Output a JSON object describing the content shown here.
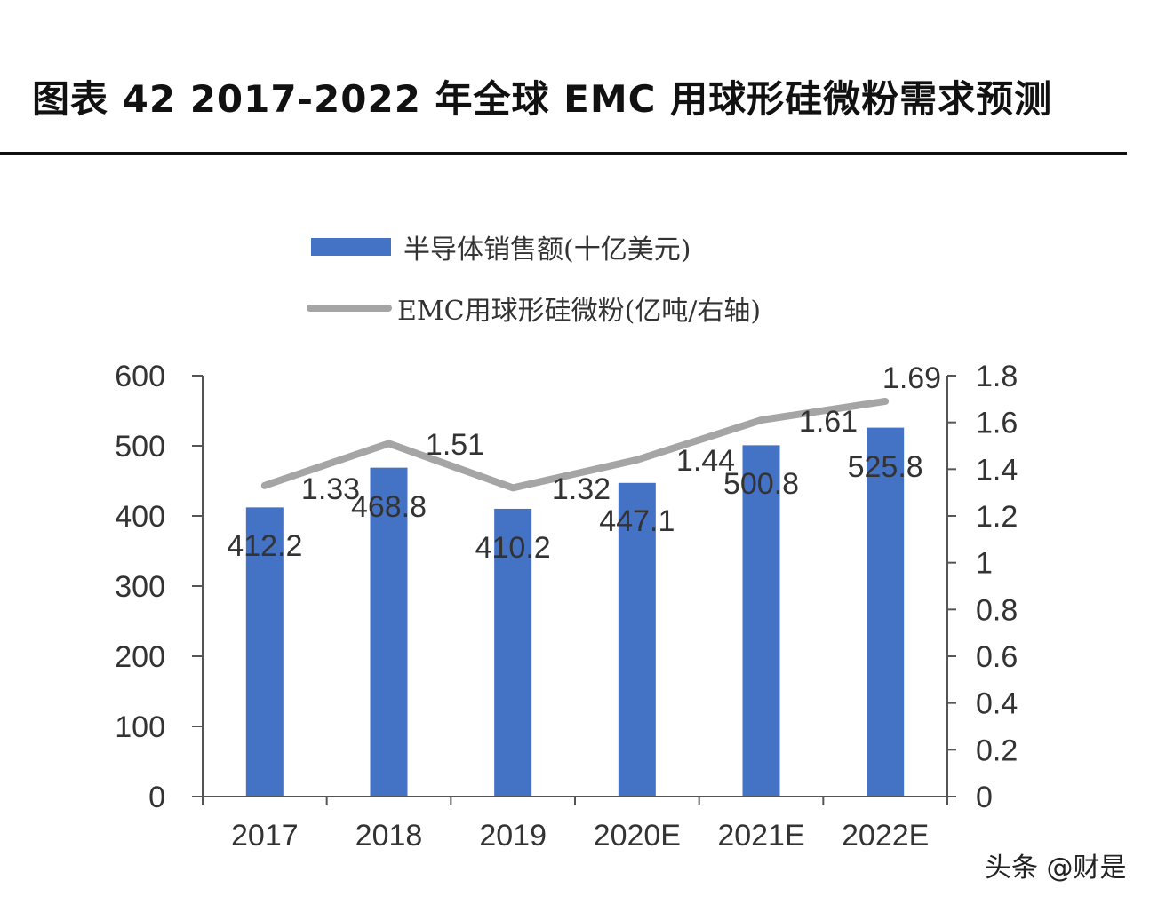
{
  "title": "图表  42 2017-2022 年全球 EMC 用球形硅微粉需求预测",
  "watermark": "头条 @财是",
  "colors": {
    "bar": "#4472C4",
    "line": "#A5A5A5",
    "axis": "#555555",
    "text": "#333333"
  },
  "chart_data": {
    "type": "bar+line",
    "title": "2017-2022 年全球 EMC 用球形硅微粉需求预测",
    "categories": [
      "2017",
      "2018",
      "2019",
      "2020E",
      "2021E",
      "2022E"
    ],
    "series": [
      {
        "name": "半导体销售额(十亿美元)",
        "type": "bar",
        "axis": "left",
        "values": [
          412.2,
          468.8,
          410.2,
          447.1,
          500.8,
          525.8
        ],
        "labels": [
          "412.2",
          "468.8",
          "410.2",
          "447.1",
          "500.8",
          "525.8"
        ]
      },
      {
        "name": "EMC用球形硅微粉(亿吨/右轴)",
        "type": "line",
        "axis": "right",
        "values": [
          1.33,
          1.51,
          1.32,
          1.44,
          1.61,
          1.69
        ],
        "labels": [
          "1.33",
          "1.51",
          "1.32",
          "1.44",
          "1.61",
          "1.69"
        ]
      }
    ],
    "y_left": {
      "min": 0,
      "max": 600,
      "ticks": [
        "0",
        "100",
        "200",
        "300",
        "400",
        "500",
        "600"
      ]
    },
    "y_right": {
      "min": 0,
      "max": 1.8,
      "ticks": [
        "0",
        "0.2",
        "0.4",
        "0.6",
        "0.8",
        "1",
        "1.2",
        "1.4",
        "1.6",
        "1.8"
      ]
    },
    "legend": "top-center",
    "grid": false
  }
}
